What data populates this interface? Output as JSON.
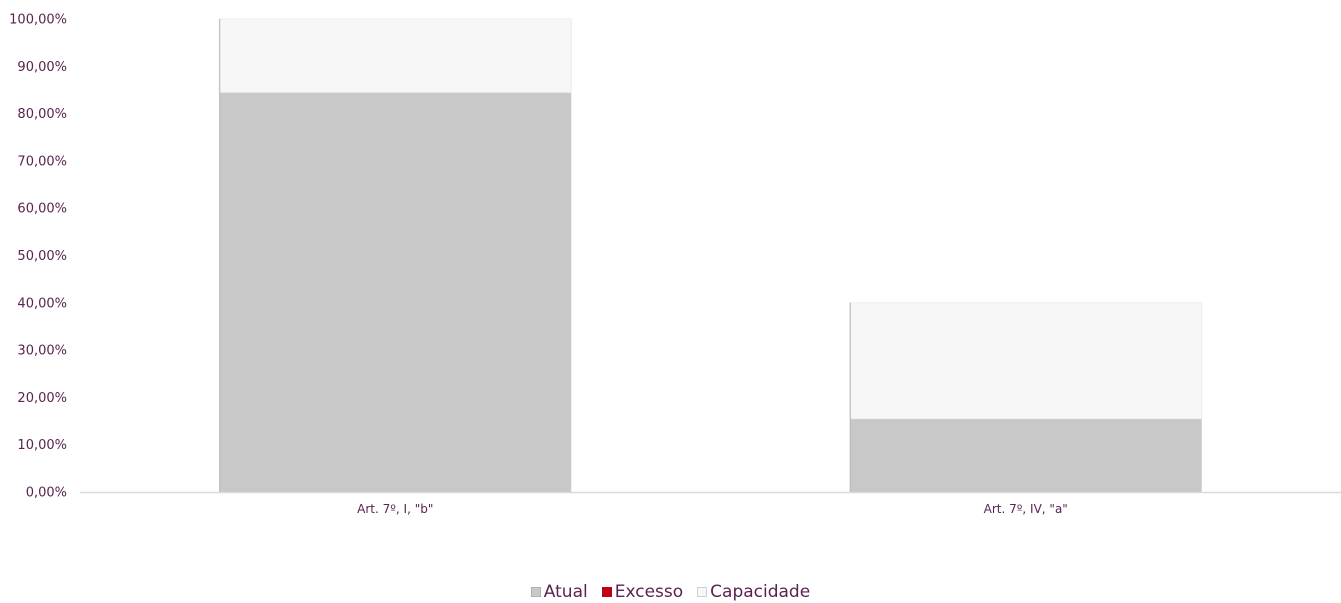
{
  "chart_data": {
    "type": "bar",
    "stacked": true,
    "categories": [
      "Art. 7º, I, \"b\"",
      "Art. 7º, IV, \"a\""
    ],
    "series": [
      {
        "name": "Atual",
        "values": [
          84.5,
          15.5
        ],
        "color": "#c8c8c8"
      },
      {
        "name": "Excesso",
        "values": [
          0,
          0
        ],
        "color": "#c0001a"
      },
      {
        "name": "Capacidade",
        "values": [
          15.5,
          24.5
        ],
        "color": "#f7f7f7"
      }
    ],
    "yticks": [
      "0,00%",
      "10,00%",
      "20,00%",
      "30,00%",
      "40,00%",
      "50,00%",
      "60,00%",
      "70,00%",
      "80,00%",
      "90,00%",
      "100,00%"
    ],
    "ylim": [
      0,
      100
    ],
    "legend_position": "bottom",
    "grid": false,
    "colors": {
      "text": "#5a2350",
      "axis": "#d9d9d9"
    }
  }
}
